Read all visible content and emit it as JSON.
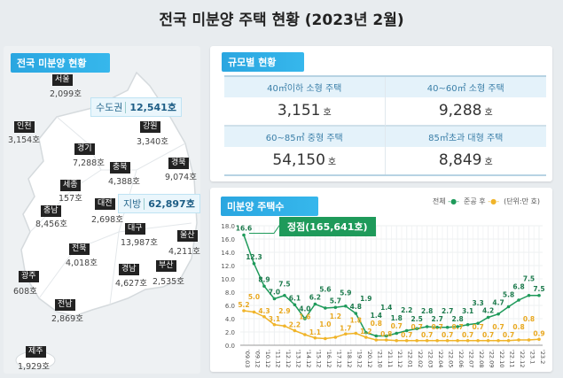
{
  "title": "전국 미분양 주택 현황 (2023년 2월)",
  "left": {
    "header": "전국 미분양 현황",
    "capital": {
      "label": "수도권",
      "value": "12,541호"
    },
    "provinces": {
      "label": "지방",
      "value": "62,897호"
    },
    "regions": [
      {
        "name": "서울",
        "value": "2,099호"
      },
      {
        "name": "인천",
        "value": "3,154호"
      },
      {
        "name": "경기",
        "value": "7,288호"
      },
      {
        "name": "강원",
        "value": "3,340호"
      },
      {
        "name": "충북",
        "value": "4,388호"
      },
      {
        "name": "경북",
        "value": "9,074호"
      },
      {
        "name": "세종",
        "value": "157호"
      },
      {
        "name": "충남",
        "value": "8,456호"
      },
      {
        "name": "대전",
        "value": "2,698호"
      },
      {
        "name": "대구",
        "value": "13,987호"
      },
      {
        "name": "울산",
        "value": "4,211호"
      },
      {
        "name": "전북",
        "value": "4,018호"
      },
      {
        "name": "경남",
        "value": "4,627호"
      },
      {
        "name": "부산",
        "value": "2,535호"
      },
      {
        "name": "광주",
        "value": "608호"
      },
      {
        "name": "전남",
        "value": "2,869호"
      },
      {
        "name": "제주",
        "value": "1,929호"
      }
    ]
  },
  "sizes": {
    "header": "규모별 현황",
    "unit": "호",
    "items": [
      {
        "label": "40㎡이하 소형 주택",
        "value": "3,151"
      },
      {
        "label": "40~60㎡ 소형 주택",
        "value": "9,288"
      },
      {
        "label": "60~85㎡ 중형 주택",
        "value": "54,150"
      },
      {
        "label": "85㎡초과 대형 주택",
        "value": "8,849"
      }
    ]
  },
  "chart": {
    "header": "미분양 주택수",
    "peak": "정점(165,641호)",
    "legend_total": "전체",
    "legend_completed": "준공 후",
    "unit": "(단위:만 호)"
  },
  "chart_data": {
    "type": "line",
    "ylim": [
      0,
      18
    ],
    "yticks": [
      "0.0",
      "2.0",
      "4.0",
      "6.0",
      "8.0",
      "10.0",
      "12.0",
      "14.0",
      "16.0",
      "18.0"
    ],
    "grid": true,
    "categories": [
      "'09.03",
      "'09.12",
      "'10.12",
      "'11.12",
      "'12.12",
      "'13.12",
      "'14.12",
      "'15.12",
      "'16.12",
      "'17.12",
      "'18.12",
      "'19.12",
      "'20.12",
      "'21.10",
      "'21.11",
      "'21.12",
      "'22.01",
      "'22.02",
      "'22.03",
      "'22.04",
      "'22.05",
      "'22.06",
      "'22.07",
      "'22.08",
      "'22.09",
      "'22.10",
      "'22.11",
      "'22.12",
      "'23.1",
      "'23.2"
    ],
    "series": [
      {
        "name": "전체",
        "color": "#1e9a5a",
        "values": [
          16.6,
          12.3,
          8.9,
          7.0,
          7.5,
          6.1,
          4.0,
          6.2,
          5.6,
          5.7,
          5.9,
          4.8,
          1.9,
          1.4,
          1.4,
          1.8,
          2.2,
          2.5,
          2.8,
          2.7,
          2.7,
          2.8,
          3.1,
          3.3,
          4.2,
          4.7,
          5.8,
          6.8,
          7.5,
          7.5
        ]
      },
      {
        "name": "준공 후",
        "color": "#f0b429",
        "values": [
          5.2,
          5.0,
          4.3,
          3.1,
          2.9,
          2.2,
          1.6,
          1.1,
          1.0,
          1.2,
          1.7,
          1.8,
          1.2,
          0.8,
          0.8,
          0.7,
          0.7,
          0.7,
          0.7,
          0.7,
          0.7,
          0.7,
          0.7,
          0.7,
          0.7,
          0.7,
          0.7,
          0.8,
          0.8,
          0.9
        ]
      }
    ]
  }
}
